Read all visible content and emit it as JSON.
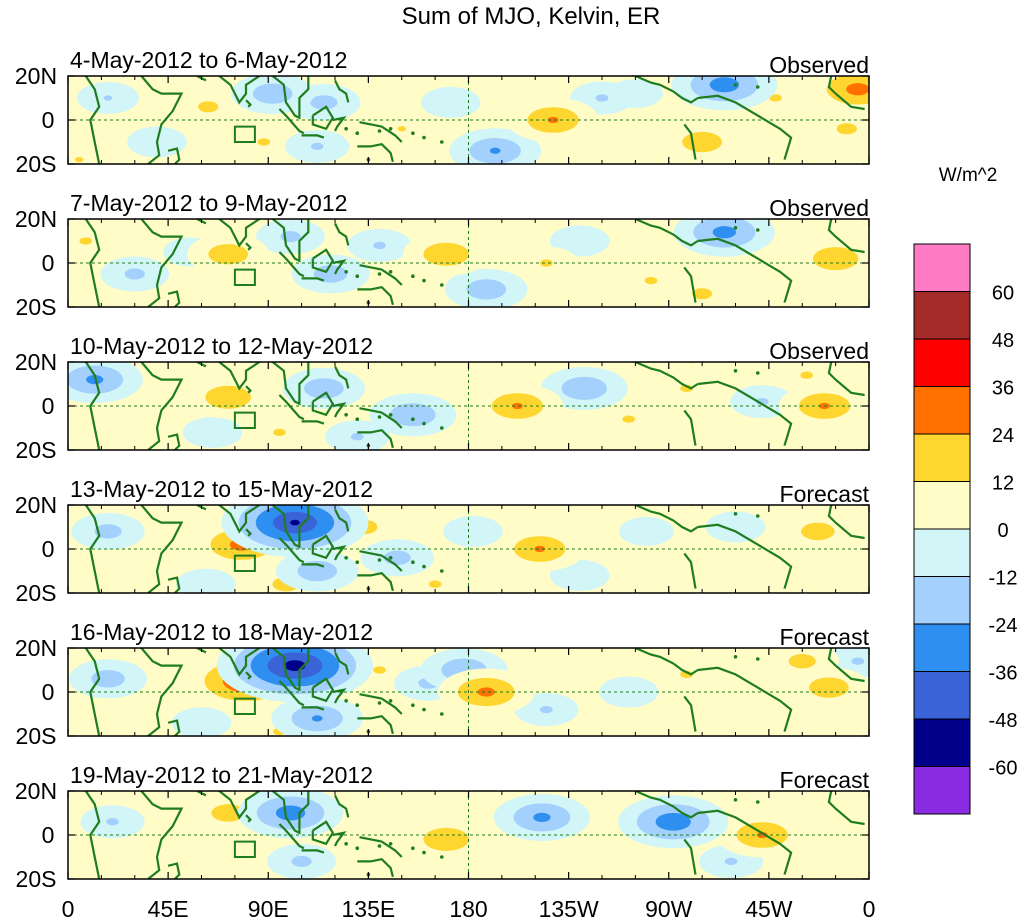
{
  "chart_data": {
    "type": "heatmap",
    "title": "Sum of MJO, Kelvin, ER",
    "colorbar": {
      "units": "W/m^2",
      "ticks": [
        "60",
        "48",
        "36",
        "24",
        "12",
        "0",
        "-12",
        "-24",
        "-36",
        "-48",
        "-60"
      ],
      "colors": [
        "#ff7bc4",
        "#a52a2a",
        "#ff0000",
        "#ff7000",
        "#ffd530",
        "#fffcc8",
        "#d2f5f7",
        "#a3d0fc",
        "#2f8ff0",
        "#3b63d8",
        "#00008b",
        "#8a2be2"
      ]
    },
    "x_axis": {
      "ticks": [
        "0",
        "45E",
        "90E",
        "135E",
        "180",
        "135W",
        "90W",
        "45W",
        "0"
      ],
      "range_deg_east": [
        0,
        360
      ]
    },
    "y_axis": {
      "ticks": [
        "20N",
        "0",
        "20S"
      ],
      "range_deg_lat": [
        -20,
        20
      ]
    },
    "panels": [
      {
        "period": "4-May-2012 to 6-May-2012",
        "status": "Observed",
        "anomalies": [
          {
            "lon": 18,
            "lat": 10,
            "value": -13
          },
          {
            "lon": 40,
            "lat": -10,
            "value": -12
          },
          {
            "lon": 63,
            "lat": 6,
            "value": 16
          },
          {
            "lon": 92,
            "lat": 12,
            "value": -22
          },
          {
            "lon": 88,
            "lat": -10,
            "value": 14
          },
          {
            "lon": 115,
            "lat": 8,
            "value": -18
          },
          {
            "lon": 112,
            "lat": -12,
            "value": -14
          },
          {
            "lon": 150,
            "lat": -4,
            "value": 13
          },
          {
            "lon": 172,
            "lat": 8,
            "value": -12
          },
          {
            "lon": 192,
            "lat": -14,
            "value": -26
          },
          {
            "lon": 218,
            "lat": 0,
            "value": 26
          },
          {
            "lon": 240,
            "lat": 10,
            "value": -14
          },
          {
            "lon": 255,
            "lat": 12,
            "value": -10
          },
          {
            "lon": 295,
            "lat": 16,
            "value": -32
          },
          {
            "lon": 285,
            "lat": -10,
            "value": 22
          },
          {
            "lon": 318,
            "lat": 10,
            "value": 14
          },
          {
            "lon": 355,
            "lat": 14,
            "value": 30
          },
          {
            "lon": 350,
            "lat": -4,
            "value": 16
          },
          {
            "lon": 5,
            "lat": -18,
            "value": 13
          }
        ]
      },
      {
        "period": "7-May-2012 to 9-May-2012",
        "status": "Observed",
        "anomalies": [
          {
            "lon": 8,
            "lat": 10,
            "value": 14
          },
          {
            "lon": 30,
            "lat": -5,
            "value": -16
          },
          {
            "lon": 55,
            "lat": 5,
            "value": -10
          },
          {
            "lon": 72,
            "lat": 4,
            "value": 22
          },
          {
            "lon": 100,
            "lat": 12,
            "value": -16
          },
          {
            "lon": 118,
            "lat": -5,
            "value": -20
          },
          {
            "lon": 140,
            "lat": 8,
            "value": -14
          },
          {
            "lon": 170,
            "lat": 4,
            "value": 24
          },
          {
            "lon": 188,
            "lat": -12,
            "value": -22
          },
          {
            "lon": 215,
            "lat": 0,
            "value": 14
          },
          {
            "lon": 230,
            "lat": 10,
            "value": -12
          },
          {
            "lon": 262,
            "lat": -8,
            "value": 14
          },
          {
            "lon": 295,
            "lat": 14,
            "value": -30
          },
          {
            "lon": 285,
            "lat": -14,
            "value": 16
          },
          {
            "lon": 345,
            "lat": 2,
            "value": 24
          },
          {
            "lon": 355,
            "lat": 16,
            "value": 12
          }
        ]
      },
      {
        "period": "10-May-2012 to 12-May-2012",
        "status": "Observed",
        "anomalies": [
          {
            "lon": 12,
            "lat": 12,
            "value": -28
          },
          {
            "lon": 35,
            "lat": 0,
            "value": 12
          },
          {
            "lon": 72,
            "lat": 4,
            "value": 24
          },
          {
            "lon": 65,
            "lat": -12,
            "value": -12
          },
          {
            "lon": 95,
            "lat": -12,
            "value": 14
          },
          {
            "lon": 115,
            "lat": 8,
            "value": -22
          },
          {
            "lon": 130,
            "lat": -14,
            "value": -14
          },
          {
            "lon": 155,
            "lat": -4,
            "value": -24
          },
          {
            "lon": 202,
            "lat": 0,
            "value": 26
          },
          {
            "lon": 232,
            "lat": 8,
            "value": -24
          },
          {
            "lon": 252,
            "lat": -6,
            "value": 14
          },
          {
            "lon": 278,
            "lat": 8,
            "value": 14
          },
          {
            "lon": 312,
            "lat": 2,
            "value": -14
          },
          {
            "lon": 340,
            "lat": 0,
            "value": 26
          },
          {
            "lon": 332,
            "lat": 14,
            "value": 14
          }
        ]
      },
      {
        "period": "13-May-2012 to 15-May-2012",
        "status": "Forecast",
        "anomalies": [
          {
            "lon": 18,
            "lat": 8,
            "value": -18
          },
          {
            "lon": 78,
            "lat": 2,
            "value": 30
          },
          {
            "lon": 62,
            "lat": -16,
            "value": -12
          },
          {
            "lon": 102,
            "lat": 12,
            "value": -50
          },
          {
            "lon": 112,
            "lat": -10,
            "value": -22
          },
          {
            "lon": 98,
            "lat": -16,
            "value": 18
          },
          {
            "lon": 133,
            "lat": 10,
            "value": 18
          },
          {
            "lon": 148,
            "lat": -4,
            "value": -18
          },
          {
            "lon": 165,
            "lat": -16,
            "value": 14
          },
          {
            "lon": 182,
            "lat": 8,
            "value": -12
          },
          {
            "lon": 212,
            "lat": 0,
            "value": 26
          },
          {
            "lon": 230,
            "lat": -12,
            "value": -12
          },
          {
            "lon": 260,
            "lat": 8,
            "value": -10
          },
          {
            "lon": 300,
            "lat": 10,
            "value": -12
          },
          {
            "lon": 337,
            "lat": 8,
            "value": 20
          },
          {
            "lon": 350,
            "lat": -6,
            "value": 12
          }
        ]
      },
      {
        "period": "16-May-2012 to 18-May-2012",
        "status": "Forecast",
        "anomalies": [
          {
            "lon": 18,
            "lat": 6,
            "value": -20
          },
          {
            "lon": 80,
            "lat": 5,
            "value": 38
          },
          {
            "lon": 60,
            "lat": -14,
            "value": -12
          },
          {
            "lon": 102,
            "lat": 12,
            "value": -54
          },
          {
            "lon": 112,
            "lat": -12,
            "value": -26
          },
          {
            "lon": 95,
            "lat": -18,
            "value": 14
          },
          {
            "lon": 140,
            "lat": 10,
            "value": 14
          },
          {
            "lon": 162,
            "lat": 4,
            "value": -16
          },
          {
            "lon": 178,
            "lat": 10,
            "value": -24
          },
          {
            "lon": 188,
            "lat": 0,
            "value": 28
          },
          {
            "lon": 215,
            "lat": -8,
            "value": -14
          },
          {
            "lon": 252,
            "lat": 0,
            "value": -12
          },
          {
            "lon": 278,
            "lat": 8,
            "value": 14
          },
          {
            "lon": 330,
            "lat": 14,
            "value": 18
          },
          {
            "lon": 342,
            "lat": 2,
            "value": 22
          },
          {
            "lon": 355,
            "lat": 14,
            "value": -14
          }
        ]
      },
      {
        "period": "19-May-2012 to 21-May-2012",
        "status": "Forecast",
        "anomalies": [
          {
            "lon": 20,
            "lat": 6,
            "value": -14
          },
          {
            "lon": 72,
            "lat": 10,
            "value": 20
          },
          {
            "lon": 100,
            "lat": 10,
            "value": -32
          },
          {
            "lon": 105,
            "lat": -12,
            "value": -16
          },
          {
            "lon": 140,
            "lat": 4,
            "value": 12
          },
          {
            "lon": 170,
            "lat": -2,
            "value": 24
          },
          {
            "lon": 213,
            "lat": 8,
            "value": -28
          },
          {
            "lon": 228,
            "lat": -8,
            "value": 12
          },
          {
            "lon": 272,
            "lat": 6,
            "value": -34
          },
          {
            "lon": 312,
            "lat": 0,
            "value": 26
          },
          {
            "lon": 298,
            "lat": -12,
            "value": -14
          },
          {
            "lon": 345,
            "lat": 10,
            "value": 12
          }
        ]
      }
    ]
  }
}
